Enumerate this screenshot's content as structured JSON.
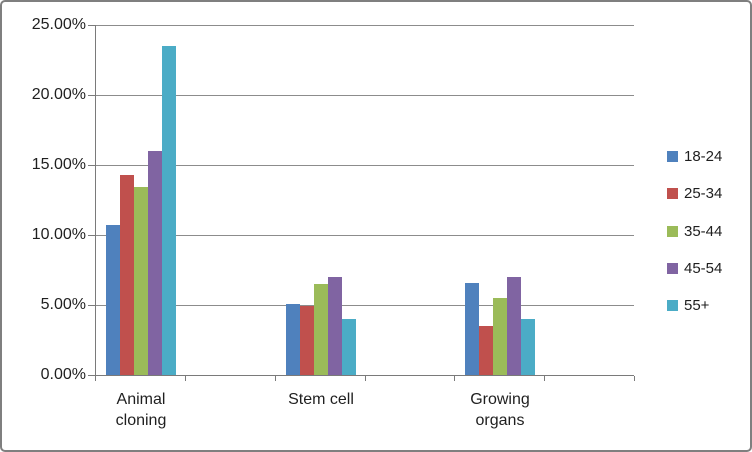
{
  "chart_data": {
    "type": "bar",
    "title": "",
    "xlabel": "",
    "ylabel": "",
    "categories": [
      "Animal cloning",
      "Stem cell",
      "Growing organs"
    ],
    "series": [
      {
        "name": "18-24",
        "color": "#4F81BD",
        "values": [
          10.7,
          5.1,
          6.6
        ]
      },
      {
        "name": "25-34",
        "color": "#C0504D",
        "values": [
          14.3,
          4.9,
          3.5
        ]
      },
      {
        "name": "35-44",
        "color": "#9BBB59",
        "values": [
          13.4,
          6.5,
          5.5
        ]
      },
      {
        "name": "45-54",
        "color": "#8064A2",
        "values": [
          16.0,
          7.0,
          7.0
        ]
      },
      {
        "name": "55+",
        "color": "#4BACC6",
        "values": [
          23.5,
          4.0,
          4.0
        ]
      }
    ],
    "y_axis": {
      "min": 0,
      "max": 25,
      "step": 5,
      "tick_labels": [
        "0.00%",
        "5.00%",
        "10.00%",
        "15.00%",
        "20.00%",
        "25.00%"
      ]
    },
    "legend_position": "right",
    "grid": true,
    "colors": {
      "gridline": "#8c8c8c",
      "axis": "#7a7a7a",
      "text": "#1f1f1f",
      "frame_border": "#7f7f7f"
    }
  }
}
